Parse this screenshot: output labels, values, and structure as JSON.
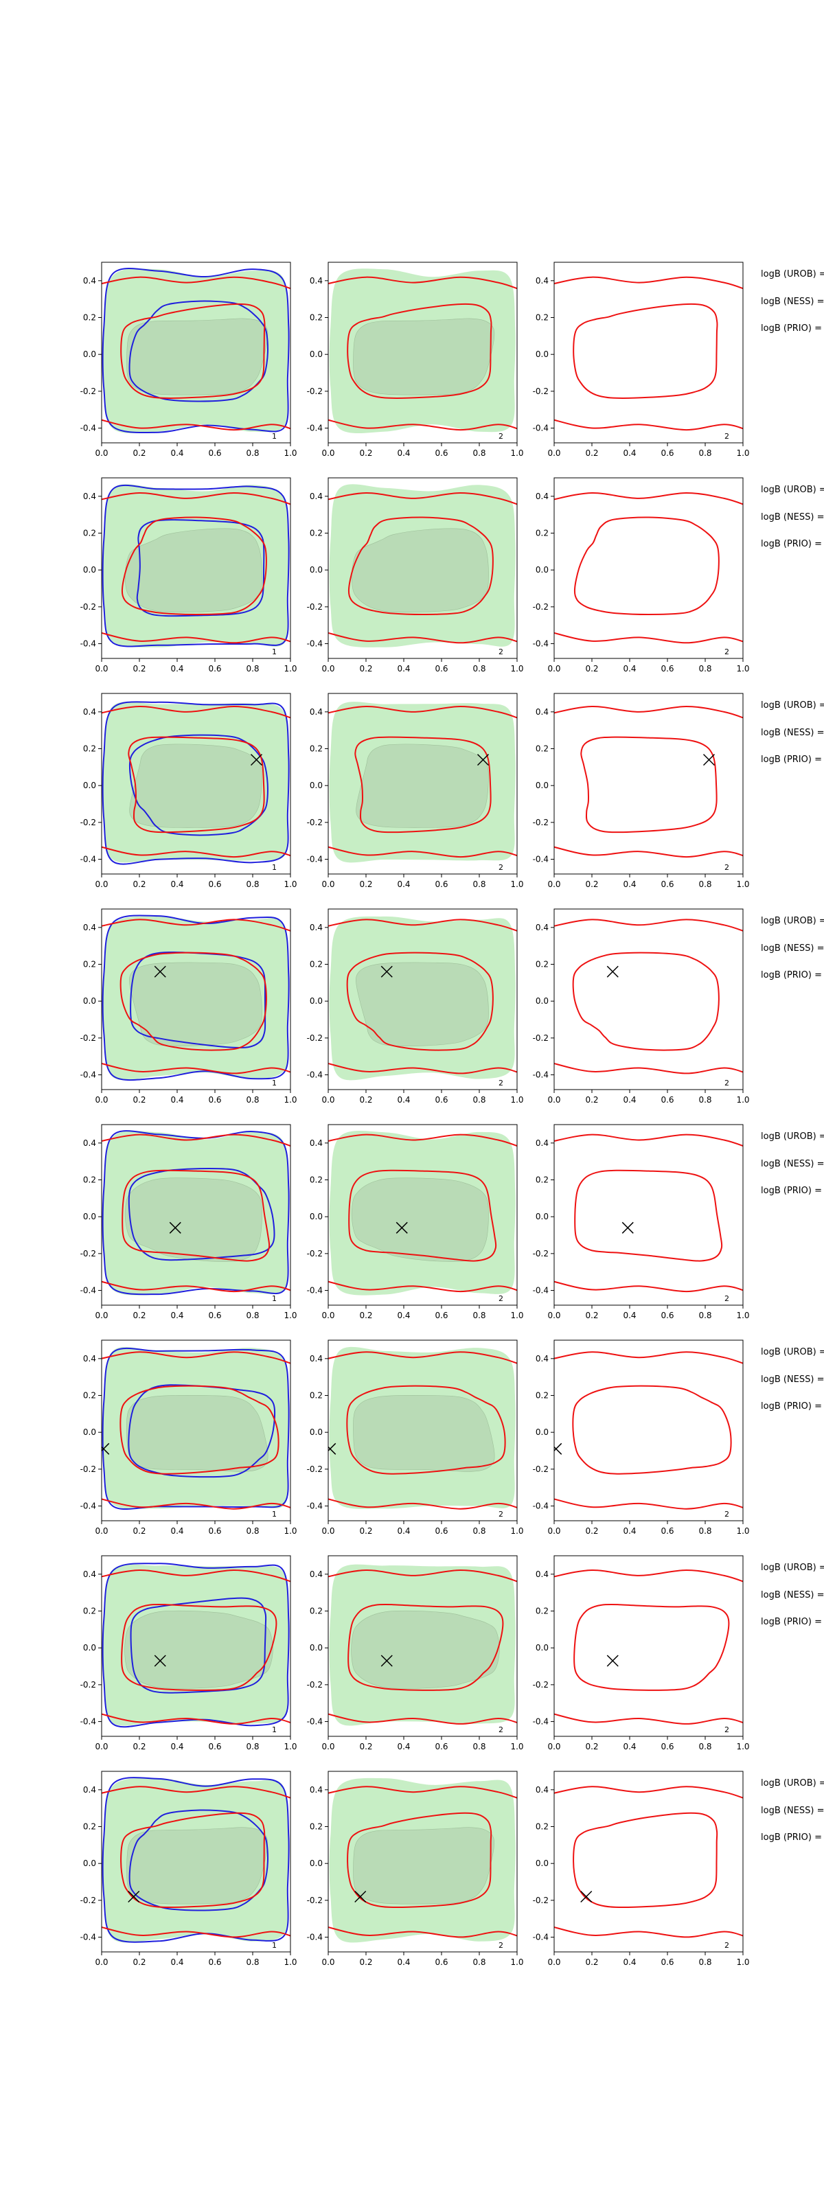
{
  "chart_data": {
    "type": "contour",
    "xlim": [
      0.0,
      1.0
    ],
    "ylim": [
      -0.48,
      0.5
    ],
    "xticks": [
      "0.0",
      "0.2",
      "0.4",
      "0.6",
      "0.8",
      "1.0"
    ],
    "yticks": [
      "0.4",
      "0.2",
      "0.0",
      "-0.2",
      "-0.4"
    ],
    "columns": [
      {
        "label": "1",
        "layers": [
          "green-outer",
          "green-inner",
          "blue-contours",
          "red-contours"
        ]
      },
      {
        "label": "2",
        "layers": [
          "green-outer",
          "green-inner",
          "red-contours"
        ]
      },
      {
        "label": "2",
        "layers": [
          "red-contours"
        ]
      }
    ],
    "colors": {
      "red": "#ee1111",
      "blue": "#1f1fdd",
      "green_outer": "#c7eec5",
      "green_inner": "#b4d4b0",
      "marker": "#000000"
    },
    "side_labels": [
      "logB (UROB) =",
      "logB (NESS) =",
      "logB (PRIO) ="
    ],
    "rows": [
      {
        "row": 1,
        "marker": null
      },
      {
        "row": 2,
        "marker": null
      },
      {
        "row": 3,
        "marker": {
          "x": 0.82,
          "y": 0.14
        }
      },
      {
        "row": 4,
        "marker": {
          "x": 0.31,
          "y": 0.16
        }
      },
      {
        "row": 5,
        "marker": {
          "x": 0.39,
          "y": -0.06
        }
      },
      {
        "row": 6,
        "marker": {
          "x": 0.01,
          "y": -0.09
        }
      },
      {
        "row": 7,
        "marker": {
          "x": 0.31,
          "y": -0.07
        }
      },
      {
        "row": 8,
        "marker": {
          "x": 0.17,
          "y": -0.18
        }
      }
    ]
  }
}
